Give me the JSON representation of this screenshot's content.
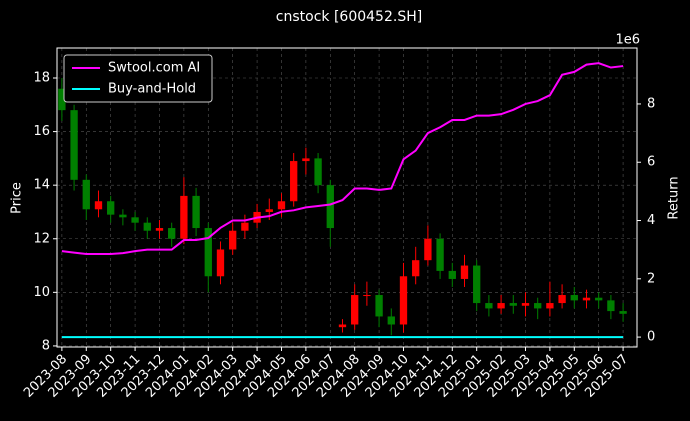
{
  "chart_data": {
    "type": "candlestick",
    "title": "cnstock [600452.SH]",
    "ylabel": "Price",
    "y2label": "Return",
    "y2_offset_label": "1e6",
    "grid": true,
    "legend": "upper left",
    "x": [
      0,
      0.5,
      1,
      1.5,
      2,
      2.5,
      3,
      3.5,
      4,
      4.5,
      5,
      5.5,
      6,
      6.5,
      7,
      7.5,
      8,
      8.5,
      9,
      9.5,
      10,
      10.5,
      11,
      11.5,
      12,
      12.5,
      13,
      13.5,
      14,
      14.5,
      15,
      15.5,
      16,
      16.5,
      17,
      17.5,
      18,
      18.5,
      19,
      19.5,
      20,
      20.5,
      21,
      21.5,
      22,
      22.5,
      23
    ],
    "xlim": [
      -0.2,
      23.57
    ],
    "xticks": [
      {
        "value": 0,
        "label": "2023-08"
      },
      {
        "value": 1,
        "label": "2023-09"
      },
      {
        "value": 2,
        "label": "2023-10"
      },
      {
        "value": 3,
        "label": "2023-11"
      },
      {
        "value": 4,
        "label": "2023-12"
      },
      {
        "value": 5,
        "label": "2024-01"
      },
      {
        "value": 6,
        "label": "2024-02"
      },
      {
        "value": 7,
        "label": "2024-03"
      },
      {
        "value": 8,
        "label": "2024-04"
      },
      {
        "value": 9,
        "label": "2024-05"
      },
      {
        "value": 10,
        "label": "2024-06"
      },
      {
        "value": 11,
        "label": "2024-07"
      },
      {
        "value": 12,
        "label": "2024-08"
      },
      {
        "value": 13,
        "label": "2024-09"
      },
      {
        "value": 14,
        "label": "2024-10"
      },
      {
        "value": 15,
        "label": "2024-11"
      },
      {
        "value": 16,
        "label": "2024-12"
      },
      {
        "value": 17,
        "label": "2025-01"
      },
      {
        "value": 18,
        "label": "2025-02"
      },
      {
        "value": 19,
        "label": "2025-03"
      },
      {
        "value": 20,
        "label": "2025-04"
      },
      {
        "value": 21,
        "label": "2025-05"
      },
      {
        "value": 22,
        "label": "2025-06"
      },
      {
        "value": 23,
        "label": "2025-07"
      }
    ],
    "ylim": [
      7.96,
      19.12
    ],
    "yticks": [
      8,
      10,
      12,
      14,
      16,
      18
    ],
    "y2lim": [
      -0.34,
      9.92
    ],
    "y2ticks": [
      0,
      2,
      4,
      6,
      8
    ],
    "candles": {
      "up_color": "#ff0000",
      "down_color": "#008000",
      "open": [
        17.6,
        16.8,
        14.2,
        13.1,
        13.4,
        12.9,
        12.8,
        12.6,
        12.3,
        12.4,
        12.0,
        13.6,
        12.4,
        10.6,
        11.6,
        12.3,
        12.6,
        13.0,
        13.1,
        13.4,
        14.9,
        15.0,
        14.0,
        8.7,
        8.8,
        9.9,
        9.9,
        9.1,
        8.8,
        10.6,
        11.2,
        12.0,
        10.8,
        10.5,
        11.0,
        9.6,
        9.4,
        9.6,
        9.5,
        9.6,
        9.4,
        9.6,
        9.9,
        9.7,
        9.8,
        9.7,
        9.3
      ],
      "high": [
        18.0,
        17.0,
        14.4,
        13.8,
        13.6,
        13.1,
        13.0,
        12.8,
        12.7,
        12.6,
        14.3,
        13.9,
        12.6,
        11.9,
        12.6,
        12.9,
        13.3,
        13.5,
        13.7,
        15.2,
        15.4,
        15.2,
        14.2,
        9.0,
        10.3,
        10.4,
        10.1,
        9.4,
        11.1,
        11.7,
        12.5,
        12.2,
        11.1,
        11.4,
        11.2,
        9.9,
        9.9,
        9.9,
        10.0,
        9.8,
        10.4,
        10.3,
        10.2,
        10.1,
        10.0,
        9.9,
        9.6
      ],
      "low": [
        16.4,
        13.8,
        12.7,
        12.8,
        12.6,
        12.5,
        12.3,
        12.0,
        12.0,
        11.7,
        11.8,
        12.1,
        10.0,
        10.3,
        11.4,
        12.0,
        12.4,
        12.7,
        12.8,
        13.2,
        14.4,
        13.7,
        11.7,
        8.5,
        8.6,
        9.5,
        8.7,
        8.4,
        8.5,
        10.3,
        11.0,
        10.5,
        10.2,
        10.2,
        9.3,
        9.1,
        9.2,
        9.2,
        9.1,
        9.0,
        9.1,
        9.4,
        9.4,
        9.4,
        9.4,
        9.0,
        8.9
      ],
      "close": [
        16.8,
        14.2,
        13.1,
        13.4,
        12.9,
        12.8,
        12.6,
        12.3,
        12.4,
        12.0,
        13.6,
        12.4,
        10.6,
        11.6,
        12.3,
        12.6,
        13.0,
        13.1,
        13.4,
        14.9,
        15.0,
        14.0,
        12.4,
        8.8,
        9.9,
        9.9,
        9.1,
        8.8,
        10.6,
        11.2,
        12.0,
        10.8,
        10.5,
        11.0,
        9.6,
        9.4,
        9.6,
        9.5,
        9.6,
        9.4,
        9.6,
        9.9,
        9.7,
        9.8,
        9.7,
        9.3,
        9.2
      ]
    },
    "series": [
      {
        "name": "Swtool.com AI",
        "color": "#ff00ff",
        "axis": "y2",
        "values": [
          2.95,
          2.9,
          2.85,
          2.85,
          2.85,
          2.88,
          2.95,
          3.0,
          3.0,
          3.0,
          3.33,
          3.33,
          3.4,
          3.75,
          4.0,
          4.0,
          4.1,
          4.15,
          4.3,
          4.35,
          4.45,
          4.5,
          4.55,
          4.7,
          5.1,
          5.1,
          5.05,
          5.1,
          6.1,
          6.4,
          7.0,
          7.2,
          7.45,
          7.45,
          7.6,
          7.6,
          7.65,
          7.8,
          8.0,
          8.1,
          8.3,
          9.0,
          9.1,
          9.35,
          9.4,
          9.25,
          9.3
        ]
      },
      {
        "name": "Buy-and-Hold",
        "color": "#00ffff",
        "axis": "y2",
        "values": [
          0,
          0,
          0,
          0,
          0,
          0,
          0,
          0,
          0,
          0,
          0,
          0,
          0,
          0,
          0,
          0,
          0,
          0,
          0,
          0,
          0,
          0,
          0,
          0,
          0,
          0,
          0,
          0,
          0,
          0,
          0,
          0,
          0,
          0,
          0,
          0,
          0,
          0,
          0,
          0,
          0,
          0,
          0,
          0,
          0,
          0,
          0
        ]
      }
    ]
  }
}
